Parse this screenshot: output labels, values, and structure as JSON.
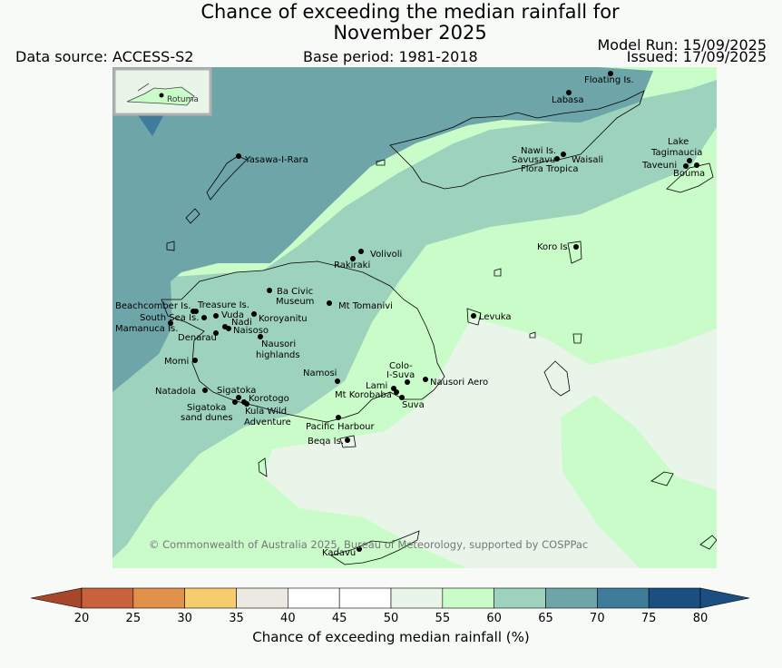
{
  "title_line1": "Chance of exceeding the median rainfall for",
  "title_line2": "November 2025",
  "data_source": "Data source: ACCESS-S2",
  "base_period": "Base period: 1981-2018",
  "model_run": "Model Run: 15/09/2025",
  "issued": "Issued: 17/09/2025",
  "copyright": "© Commonwealth of Australia 2025, Bureau of Meteorology, supported by COSPPac",
  "inset_label": "Rotuma",
  "colorbar": {
    "label": "Chance of exceeding median rainfall (%)",
    "ticks": [
      "20",
      "25",
      "30",
      "35",
      "40",
      "45",
      "50",
      "55",
      "60",
      "65",
      "70",
      "75",
      "80"
    ],
    "colors": [
      "#a9472a",
      "#c9623a",
      "#e0914a",
      "#f7cc6e",
      "#ebe9e2",
      "#ffffff",
      "#ffffff",
      "#eaf5ea",
      "#c9fcc8",
      "#9dd2bd",
      "#6da5a8",
      "#3f7c99",
      "#1b4f82"
    ]
  },
  "places": [
    {
      "name": "Floating Is."
    },
    {
      "name": "Labasa"
    },
    {
      "name": "Yasawa-I-Rara"
    },
    {
      "name": "Nawi Is."
    },
    {
      "name": "Savusavu"
    },
    {
      "name": "Waisali"
    },
    {
      "name": "Flora Tropica"
    },
    {
      "name": "Lake"
    },
    {
      "name": "Tagimaucia"
    },
    {
      "name": "Taveuni"
    },
    {
      "name": "Bouma"
    },
    {
      "name": "Koro Is."
    },
    {
      "name": "Volivoli"
    },
    {
      "name": "Rakiraki"
    },
    {
      "name": "Ba Civic"
    },
    {
      "name": "Museum"
    },
    {
      "name": "Mt Tomanivi"
    },
    {
      "name": "Beachcomber Is."
    },
    {
      "name": "Treasure Is."
    },
    {
      "name": "South Sea Is."
    },
    {
      "name": "Vuda"
    },
    {
      "name": "Koroyanitu"
    },
    {
      "name": "Nadi"
    },
    {
      "name": "Mamanuca Is."
    },
    {
      "name": "Naisoso"
    },
    {
      "name": "Denarau"
    },
    {
      "name": "Nausori"
    },
    {
      "name": "highlands"
    },
    {
      "name": "Levuka"
    },
    {
      "name": "Momi"
    },
    {
      "name": "Colo-"
    },
    {
      "name": "I-Suva"
    },
    {
      "name": "Namosi"
    },
    {
      "name": "Nausori Aero"
    },
    {
      "name": "Lami"
    },
    {
      "name": "Mt Korobaba"
    },
    {
      "name": "Suva"
    },
    {
      "name": "Natadola"
    },
    {
      "name": "Sigatoka"
    },
    {
      "name": "Korotogo"
    },
    {
      "name": "Sigatoka"
    },
    {
      "name": "sand dunes"
    },
    {
      "name": "Kula Wild"
    },
    {
      "name": "Adventure"
    },
    {
      "name": "Pacific Harbour"
    },
    {
      "name": "Beqa Is."
    },
    {
      "name": "Kadavu"
    }
  ]
}
